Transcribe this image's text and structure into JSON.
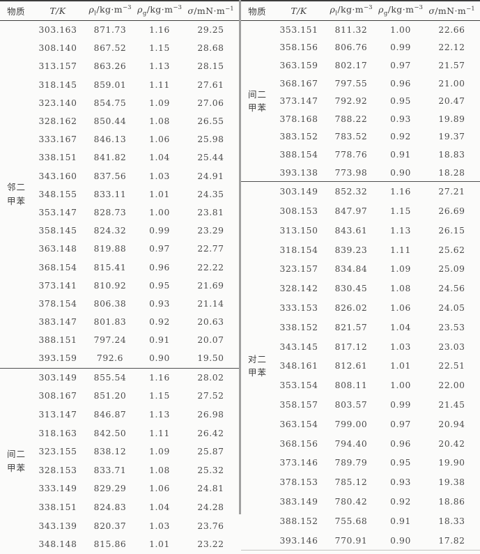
{
  "table": {
    "columns": {
      "substance": "物质",
      "temperature": "T/K",
      "rho_liquid": {
        "symbol": "ρ",
        "sub": "l",
        "unit": "/kg·m",
        "sup": "−3"
      },
      "rho_gas": {
        "symbol": "ρ",
        "sub": "g",
        "unit": "/kg·m",
        "sup": "−3"
      },
      "sigma": {
        "symbol": "σ",
        "unit": "/mN·m",
        "sup": "−1"
      }
    },
    "halves": [
      {
        "side": "left",
        "groups": [
          {
            "substance": "邻二甲苯",
            "rows": [
              [
                "303.163",
                "871.73",
                "1.16",
                "29.25"
              ],
              [
                "308.140",
                "867.52",
                "1.15",
                "28.68"
              ],
              [
                "313.157",
                "863.26",
                "1.13",
                "28.15"
              ],
              [
                "318.145",
                "859.01",
                "1.11",
                "27.61"
              ],
              [
                "323.140",
                "854.75",
                "1.09",
                "27.06"
              ],
              [
                "328.162",
                "850.44",
                "1.08",
                "26.55"
              ],
              [
                "333.167",
                "846.13",
                "1.06",
                "25.98"
              ],
              [
                "338.151",
                "841.82",
                "1.04",
                "25.44"
              ],
              [
                "343.160",
                "837.56",
                "1.03",
                "24.91"
              ],
              [
                "348.155",
                "833.11",
                "1.01",
                "24.35"
              ],
              [
                "353.147",
                "828.73",
                "1.00",
                "23.81"
              ],
              [
                "358.145",
                "824.32",
                "0.99",
                "23.29"
              ],
              [
                "363.148",
                "819.88",
                "0.97",
                "22.77"
              ],
              [
                "368.154",
                "815.41",
                "0.96",
                "22.22"
              ],
              [
                "373.141",
                "810.92",
                "0.95",
                "21.69"
              ],
              [
                "378.154",
                "806.38",
                "0.93",
                "21.14"
              ],
              [
                "383.147",
                "801.83",
                "0.92",
                "20.63"
              ],
              [
                "388.151",
                "797.24",
                "0.91",
                "20.07"
              ],
              [
                "393.159",
                "792.6",
                "0.90",
                "19.50"
              ]
            ]
          },
          {
            "substance": "间二甲苯",
            "rows": [
              [
                "303.149",
                "855.54",
                "1.16",
                "28.02"
              ],
              [
                "308.167",
                "851.20",
                "1.15",
                "27.52"
              ],
              [
                "313.147",
                "846.87",
                "1.13",
                "26.98"
              ],
              [
                "318.163",
                "842.50",
                "1.11",
                "26.42"
              ],
              [
                "323.155",
                "838.12",
                "1.09",
                "25.87"
              ],
              [
                "328.153",
                "833.71",
                "1.08",
                "25.32"
              ],
              [
                "333.149",
                "829.29",
                "1.06",
                "24.81"
              ],
              [
                "338.151",
                "824.83",
                "1.04",
                "24.28"
              ],
              [
                "343.139",
                "820.37",
                "1.03",
                "23.76"
              ],
              [
                "348.148",
                "815.86",
                "1.01",
                "23.22"
              ]
            ]
          }
        ]
      },
      {
        "side": "right",
        "groups": [
          {
            "substance": "间二甲苯",
            "rows": [
              [
                "353.151",
                "811.32",
                "1.00",
                "22.66"
              ],
              [
                "358.156",
                "806.76",
                "0.99",
                "22.12"
              ],
              [
                "363.159",
                "802.17",
                "0.97",
                "21.57"
              ],
              [
                "368.167",
                "797.55",
                "0.96",
                "21.00"
              ],
              [
                "373.147",
                "792.92",
                "0.95",
                "20.47"
              ],
              [
                "378.168",
                "788.22",
                "0.93",
                "19.89"
              ],
              [
                "383.152",
                "783.52",
                "0.92",
                "19.37"
              ],
              [
                "388.154",
                "778.76",
                "0.91",
                "18.83"
              ],
              [
                "393.138",
                "773.98",
                "0.90",
                "18.28"
              ]
            ]
          },
          {
            "substance": "对二甲苯",
            "rows": [
              [
                "303.149",
                "852.32",
                "1.16",
                "27.21"
              ],
              [
                "308.153",
                "847.97",
                "1.15",
                "26.69"
              ],
              [
                "313.150",
                "843.61",
                "1.13",
                "26.15"
              ],
              [
                "318.154",
                "839.23",
                "1.11",
                "25.62"
              ],
              [
                "323.157",
                "834.84",
                "1.09",
                "25.09"
              ],
              [
                "328.142",
                "830.45",
                "1.08",
                "24.56"
              ],
              [
                "333.153",
                "826.02",
                "1.06",
                "24.05"
              ],
              [
                "338.152",
                "821.57",
                "1.04",
                "23.53"
              ],
              [
                "343.145",
                "817.12",
                "1.03",
                "23.03"
              ],
              [
                "348.161",
                "812.61",
                "1.01",
                "22.51"
              ],
              [
                "353.154",
                "808.11",
                "1.00",
                "22.00"
              ],
              [
                "358.157",
                "803.57",
                "0.99",
                "21.45"
              ],
              [
                "363.154",
                "799.00",
                "0.97",
                "20.94"
              ],
              [
                "368.156",
                "794.40",
                "0.96",
                "20.42"
              ],
              [
                "373.146",
                "789.79",
                "0.95",
                "19.90"
              ],
              [
                "378.153",
                "785.12",
                "0.93",
                "19.38"
              ],
              [
                "383.149",
                "780.42",
                "0.92",
                "18.86"
              ],
              [
                "388.152",
                "755.68",
                "0.91",
                "18.33"
              ],
              [
                "393.146",
                "770.91",
                "0.90",
                "17.82"
              ]
            ]
          }
        ]
      }
    ]
  }
}
